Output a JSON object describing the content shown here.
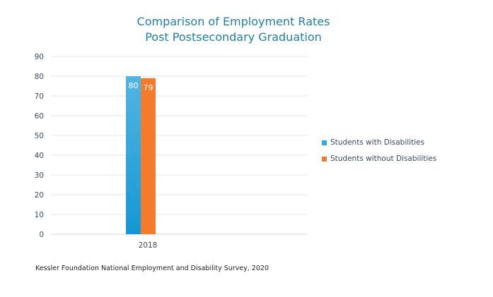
{
  "chart_data": {
    "type": "bar",
    "title": [
      "Comparison of Employment Rates",
      "Post Postsecondary Graduation"
    ],
    "categories": [
      "2018"
    ],
    "series": [
      {
        "name": "Students with Disabilities",
        "values": [
          80
        ],
        "color": "#2ea8e0"
      },
      {
        "name": "Students without Disabilities",
        "values": [
          79
        ],
        "color": "#f47a2c"
      }
    ],
    "xlabel": "",
    "ylabel": "",
    "ylim": [
      0,
      90
    ],
    "yticks": [
      0,
      10,
      20,
      30,
      40,
      50,
      60,
      70,
      80,
      90
    ],
    "grid": true,
    "data_labels": true,
    "legend_position": "right"
  },
  "source": "Kessler Foundation National Employment and Disability Survey, 2020"
}
